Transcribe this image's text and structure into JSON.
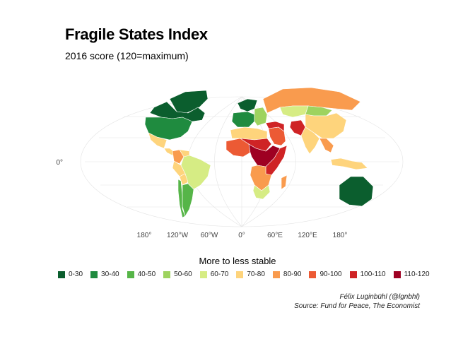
{
  "title": "Fragile States Index",
  "subtitle": "2016 score (120=maximum)",
  "axes": {
    "x_ticks": [
      "180°",
      "120°W",
      "60°W",
      "0°",
      "60°E",
      "120°E",
      "180°"
    ],
    "y_ticks": [
      "0°"
    ]
  },
  "legend": {
    "title": "More to less stable",
    "items": [
      {
        "label": "0-30",
        "color": "#0b5e2e"
      },
      {
        "label": "30-40",
        "color": "#1f8b3f"
      },
      {
        "label": "40-50",
        "color": "#56b548"
      },
      {
        "label": "50-60",
        "color": "#9ed35f"
      },
      {
        "label": "60-70",
        "color": "#d6ec84"
      },
      {
        "label": "70-80",
        "color": "#fed47c"
      },
      {
        "label": "80-90",
        "color": "#f99b4e"
      },
      {
        "label": "90-100",
        "color": "#ec5a34"
      },
      {
        "label": "100-110",
        "color": "#cf2325"
      },
      {
        "label": "110-120",
        "color": "#9e0022"
      }
    ]
  },
  "caption": {
    "author": "Félix Luginbühl (@lgnbhl)",
    "source": "Source: Fund for Peace, The Economist"
  },
  "regions": [
    {
      "name": "Greenland",
      "band": "0-30"
    },
    {
      "name": "Canada",
      "band": "0-30"
    },
    {
      "name": "USA",
      "band": "30-40"
    },
    {
      "name": "Mexico",
      "band": "70-80"
    },
    {
      "name": "Central America",
      "band": "70-80"
    },
    {
      "name": "Colombia",
      "band": "80-90"
    },
    {
      "name": "Venezuela",
      "band": "70-80"
    },
    {
      "name": "Brazil",
      "band": "60-70"
    },
    {
      "name": "Peru",
      "band": "70-80"
    },
    {
      "name": "Bolivia",
      "band": "70-80"
    },
    {
      "name": "Argentina",
      "band": "40-50"
    },
    {
      "name": "Chile",
      "band": "40-50"
    },
    {
      "name": "Scandinavia",
      "band": "0-30"
    },
    {
      "name": "Western Europe",
      "band": "30-40"
    },
    {
      "name": "Eastern Europe",
      "band": "50-60"
    },
    {
      "name": "Russia",
      "band": "80-90"
    },
    {
      "name": "Kazakhstan",
      "band": "60-70"
    },
    {
      "name": "Mongolia",
      "band": "50-60"
    },
    {
      "name": "China",
      "band": "70-80"
    },
    {
      "name": "Middle East",
      "band": "90-100"
    },
    {
      "name": "Iraq & Syria",
      "band": "100-110"
    },
    {
      "name": "Afghanistan & Pakistan",
      "band": "100-110"
    },
    {
      "name": "India",
      "band": "70-80"
    },
    {
      "name": "Southeast Asia",
      "band": "80-90"
    },
    {
      "name": "Indonesia",
      "band": "70-80"
    },
    {
      "name": "North Africa",
      "band": "70-80"
    },
    {
      "name": "West Africa",
      "band": "90-100"
    },
    {
      "name": "Sahel",
      "band": "100-110"
    },
    {
      "name": "Central Africa",
      "band": "110-120"
    },
    {
      "name": "East Africa",
      "band": "100-110"
    },
    {
      "name": "Southern Africa",
      "band": "80-90"
    },
    {
      "name": "South Africa",
      "band": "60-70"
    },
    {
      "name": "Madagascar",
      "band": "80-90"
    },
    {
      "name": "Australia",
      "band": "0-30"
    }
  ]
}
